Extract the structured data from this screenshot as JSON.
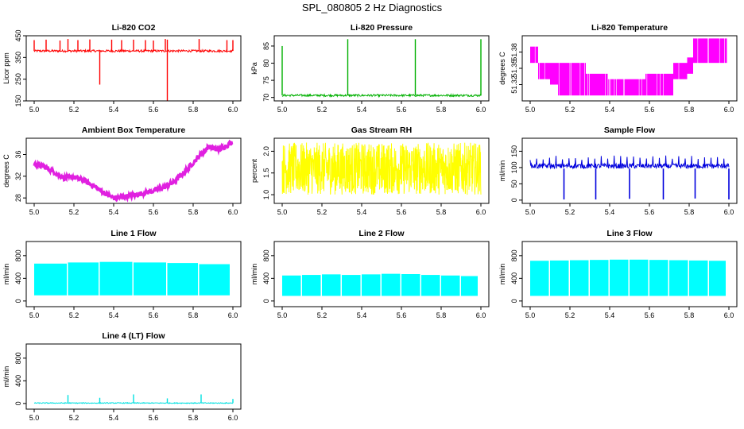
{
  "figure": {
    "title": "SPL_080805  2 Hz Diagnostics"
  },
  "chart_data": [
    {
      "type": "line",
      "title": "Li-820 CO2",
      "ylabel": "Licor ppm",
      "color": "#ff0000",
      "xlim": [
        5.0,
        6.0
      ],
      "ylim": [
        150,
        450
      ],
      "xticks": [
        "5.0",
        "5.2",
        "5.4",
        "5.6",
        "5.8",
        "6.0"
      ],
      "yticks": [
        150,
        250,
        350,
        450
      ],
      "baseline": [
        375,
        385
      ],
      "spike_dirs": [
        1,
        1,
        1,
        1,
        1,
        1,
        -1,
        1,
        1,
        1,
        1,
        1,
        1,
        1,
        -1,
        1,
        1,
        1
      ],
      "spikes": [
        [
          5.0,
          430
        ],
        [
          5.06,
          432
        ],
        [
          5.13,
          428
        ],
        [
          5.17,
          435
        ],
        [
          5.22,
          430
        ],
        [
          5.28,
          433
        ],
        [
          5.33,
          225
        ],
        [
          5.39,
          432
        ],
        [
          5.44,
          430
        ],
        [
          5.5,
          432
        ],
        [
          5.56,
          430
        ],
        [
          5.6,
          428
        ],
        [
          5.66,
          435
        ],
        [
          5.67,
          432
        ],
        [
          5.67,
          140
        ],
        [
          5.83,
          435
        ],
        [
          5.97,
          430
        ],
        [
          6.0,
          430
        ]
      ]
    },
    {
      "type": "line",
      "title": "Li-820 Pressure",
      "ylabel": "kPa",
      "color": "#00b000",
      "xlim": [
        5.0,
        6.0
      ],
      "ylim": [
        69,
        88
      ],
      "xticks": [
        "5.0",
        "5.2",
        "5.4",
        "5.6",
        "5.8",
        "6.0"
      ],
      "yticks": [
        70,
        75,
        80,
        85
      ],
      "baseline": [
        70.3,
        70.9
      ],
      "spike_dirs": [
        1,
        1,
        1,
        1
      ],
      "spikes": [
        [
          5.0,
          85
        ],
        [
          5.33,
          87
        ],
        [
          5.67,
          87
        ],
        [
          6.0,
          87
        ]
      ]
    },
    {
      "type": "area",
      "title": "Li-820 Temperature",
      "ylabel": "degrees C",
      "color": "#ff00ff",
      "xlim": [
        5.0,
        6.0
      ],
      "ylim": [
        51.29,
        51.41
      ],
      "xticks": [
        "5.0",
        "5.2",
        "5.4",
        "5.6",
        "5.8",
        "6.0"
      ],
      "yticks": [
        "51.32",
        "51.35",
        "51.38"
      ],
      "steps": [
        [
          5.0,
          5.04,
          51.36,
          51.39
        ],
        [
          5.04,
          5.1,
          51.33,
          51.36
        ],
        [
          5.1,
          5.14,
          51.32,
          51.36
        ],
        [
          5.14,
          5.28,
          51.3,
          51.36
        ],
        [
          5.28,
          5.39,
          51.3,
          51.34
        ],
        [
          5.39,
          5.58,
          51.3,
          51.33
        ],
        [
          5.58,
          5.72,
          51.3,
          51.34
        ],
        [
          5.72,
          5.79,
          51.33,
          51.36
        ],
        [
          5.79,
          5.82,
          51.34,
          51.37
        ],
        [
          5.82,
          5.99,
          51.36,
          51.405
        ]
      ]
    },
    {
      "type": "line",
      "title": "Ambient Box Temperature",
      "ylabel": "degrees C",
      "color": "#e020e0",
      "xlim": [
        5.0,
        6.0
      ],
      "ylim": [
        27,
        39
      ],
      "xticks": [
        "5.0",
        "5.2",
        "5.4",
        "5.6",
        "5.8",
        "6.0"
      ],
      "yticks": [
        28,
        32,
        36
      ],
      "points": [
        [
          5.0,
          34.2
        ],
        [
          5.05,
          33.8
        ],
        [
          5.1,
          32.8
        ],
        [
          5.15,
          31.7
        ],
        [
          5.2,
          31.8
        ],
        [
          5.25,
          31.2
        ],
        [
          5.3,
          30.2
        ],
        [
          5.35,
          29.0
        ],
        [
          5.4,
          28.0
        ],
        [
          5.45,
          28.2
        ],
        [
          5.5,
          28.5
        ],
        [
          5.55,
          28.9
        ],
        [
          5.6,
          29.3
        ],
        [
          5.65,
          29.9
        ],
        [
          5.7,
          30.9
        ],
        [
          5.75,
          32.5
        ],
        [
          5.8,
          34.5
        ],
        [
          5.85,
          36.5
        ],
        [
          5.88,
          37.5
        ],
        [
          5.92,
          36.8
        ],
        [
          5.95,
          37.3
        ],
        [
          6.0,
          38.3
        ]
      ]
    },
    {
      "type": "line",
      "title": "Gas Stream RH",
      "ylabel": "percent",
      "color": "#ffff00",
      "xlim": [
        5.0,
        6.0
      ],
      "ylim": [
        0.8,
        2.3
      ],
      "xticks": [
        "5.0",
        "5.2",
        "5.4",
        "5.6",
        "5.8",
        "6.0"
      ],
      "yticks": [
        "1.0",
        "1.5",
        "2.0"
      ],
      "band": [
        1.0,
        2.2
      ]
    },
    {
      "type": "line",
      "title": "Sample Flow",
      "ylabel": "ml/min",
      "color": "#0000dd",
      "xlim": [
        5.0,
        6.0
      ],
      "ylim": [
        -10,
        190
      ],
      "xticks": [
        "5.0",
        "5.2",
        "5.4",
        "5.6",
        "5.8",
        "6.0"
      ],
      "yticks": [
        0,
        50,
        100,
        150
      ],
      "baseline": [
        97,
        112
      ],
      "dips": [
        [
          5.17,
          2
        ],
        [
          5.33,
          2
        ],
        [
          5.5,
          4
        ],
        [
          5.67,
          2
        ],
        [
          5.83,
          5
        ],
        [
          6.0,
          2
        ]
      ]
    },
    {
      "type": "area",
      "title": "Line 1 Flow",
      "ylabel": "ml/min",
      "color": "#00ffff",
      "xlim": [
        5.0,
        6.0
      ],
      "ylim": [
        -100,
        1050
      ],
      "xticks": [
        "5.0",
        "5.2",
        "5.4",
        "5.6",
        "5.8",
        "6.0"
      ],
      "yticks": [
        0,
        400,
        800
      ],
      "low": 100,
      "segments": [
        [
          5.0,
          5.17,
          660
        ],
        [
          5.17,
          5.33,
          680
        ],
        [
          5.33,
          5.5,
          690
        ],
        [
          5.5,
          5.67,
          680
        ],
        [
          5.67,
          5.83,
          670
        ],
        [
          5.83,
          5.99,
          650
        ]
      ]
    },
    {
      "type": "area",
      "title": "Line 2 Flow",
      "ylabel": "ml/min",
      "color": "#00ffff",
      "xlim": [
        5.0,
        6.0
      ],
      "ylim": [
        -100,
        1050
      ],
      "xticks": [
        "5.0",
        "5.2",
        "5.4",
        "5.6",
        "5.8",
        "6.0"
      ],
      "yticks": [
        0,
        400,
        800
      ],
      "low": 90,
      "segments": [
        [
          5.0,
          5.1,
          450
        ],
        [
          5.1,
          5.2,
          460
        ],
        [
          5.2,
          5.3,
          470
        ],
        [
          5.3,
          5.4,
          460
        ],
        [
          5.4,
          5.5,
          470
        ],
        [
          5.5,
          5.6,
          480
        ],
        [
          5.6,
          5.7,
          475
        ],
        [
          5.7,
          5.8,
          460
        ],
        [
          5.8,
          5.9,
          450
        ],
        [
          5.9,
          5.99,
          440
        ]
      ]
    },
    {
      "type": "area",
      "title": "Line 3 Flow",
      "ylabel": "ml/min",
      "color": "#00ffff",
      "xlim": [
        5.0,
        6.0
      ],
      "ylim": [
        -100,
        1050
      ],
      "xticks": [
        "5.0",
        "5.2",
        "5.4",
        "5.6",
        "5.8",
        "6.0"
      ],
      "yticks": [
        0,
        400,
        800
      ],
      "low": 90,
      "segments": [
        [
          5.0,
          5.1,
          710
        ],
        [
          5.1,
          5.2,
          715
        ],
        [
          5.2,
          5.3,
          720
        ],
        [
          5.3,
          5.4,
          725
        ],
        [
          5.4,
          5.5,
          730
        ],
        [
          5.5,
          5.6,
          730
        ],
        [
          5.6,
          5.7,
          725
        ],
        [
          5.7,
          5.8,
          720
        ],
        [
          5.8,
          5.9,
          715
        ],
        [
          5.9,
          5.99,
          710
        ]
      ]
    },
    {
      "type": "line",
      "title": "Line 4 (LT) Flow",
      "ylabel": "ml/min",
      "color": "#00e0e0",
      "xlim": [
        5.0,
        6.0
      ],
      "ylim": [
        -100,
        1050
      ],
      "xticks": [
        "5.0",
        "5.2",
        "5.4",
        "5.6",
        "5.8",
        "6.0"
      ],
      "yticks": [
        0,
        400,
        800
      ],
      "baseline": [
        0,
        15
      ],
      "spike_dirs": [
        1,
        1,
        1,
        1,
        1,
        1
      ],
      "spikes": [
        [
          5.17,
          150
        ],
        [
          5.33,
          100
        ],
        [
          5.5,
          160
        ],
        [
          5.67,
          90
        ],
        [
          5.84,
          160
        ],
        [
          6.0,
          80
        ]
      ]
    }
  ]
}
